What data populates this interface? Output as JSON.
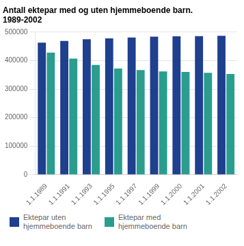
{
  "chart_data": {
    "type": "bar",
    "title": "Antall ektepar med og uten hjemmeboende barn.\n1989-2002",
    "categories": [
      "1.1.1989",
      "1.1.1991",
      "1.1.1993",
      "1.1.1995",
      "1.1.1997",
      "1.1.1999",
      "1.1.2000",
      "1.1.2001",
      "1.1.2002"
    ],
    "series": [
      {
        "name": "Ektepar uten\nhjemmeboende barn",
        "color": "#1f3f8f",
        "values": [
          463000,
          469000,
          475000,
          478000,
          481000,
          484000,
          485000,
          486000,
          487000
        ]
      },
      {
        "name": "Ektepar med\nhjemmeboende barn",
        "color": "#2a9d8f",
        "values": [
          428000,
          407000,
          385000,
          372000,
          367000,
          362000,
          360000,
          357000,
          353000
        ]
      }
    ],
    "ylim": [
      0,
      500000
    ],
    "yticks": [
      0,
      100000,
      200000,
      300000,
      400000,
      500000
    ],
    "grid": true,
    "legend": "bottom"
  }
}
